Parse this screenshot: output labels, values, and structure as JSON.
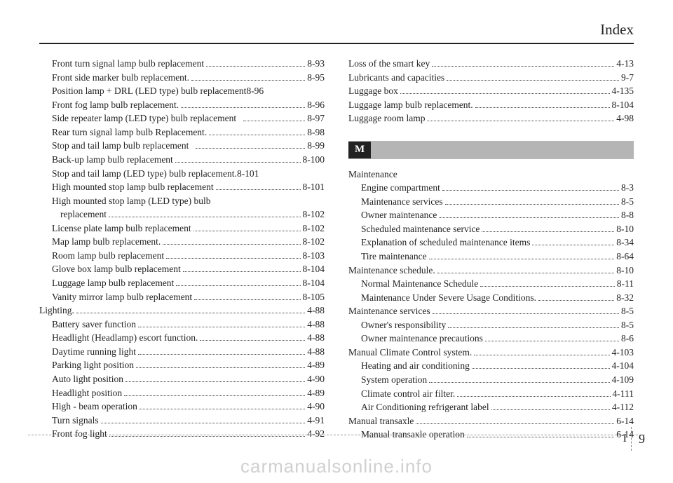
{
  "header": "Index",
  "section_letter_M": "M",
  "page_number_I": "I",
  "page_number_9": "9",
  "watermark": "carmanualsonline.info",
  "left_col": [
    {
      "label": "Front turn signal lamp bulb replacement",
      "page": "8-93",
      "indent": 1
    },
    {
      "label": "Front side marker bulb replacement.",
      "page": "8-95",
      "indent": 1
    },
    {
      "label": "Position lamp + DRL (LED type) bulb replacement",
      "page": "8-96",
      "indent": 1,
      "nodots": true
    },
    {
      "label": "Front fog lamp bulb replacement.",
      "page": "8-96",
      "indent": 1
    },
    {
      "label": "Side repeater lamp (LED type) bulb replacement",
      "page": "8-97",
      "indent": 1,
      "space": true
    },
    {
      "label": "Rear turn signal lamp bulb Replacement.",
      "page": "8-98",
      "indent": 1
    },
    {
      "label": "Stop and tail lamp bulb replacement",
      "page": "8-99",
      "indent": 1,
      "space": true
    },
    {
      "label": "Back-up lamp bulb replacement",
      "page": "8-100",
      "indent": 1
    },
    {
      "label": "Stop and tail lamp (LED type) bulb replacement.",
      "page": "8-101",
      "indent": 1,
      "nodots": true
    },
    {
      "label": "High mounted stop lamp bulb replacement",
      "page": "8-101",
      "indent": 1
    },
    {
      "label": "High mounted stop lamp (LED type) bulb",
      "page": "",
      "indent": 1,
      "nopg": true
    },
    {
      "label": "replacement",
      "page": "8-102",
      "indent": 2
    },
    {
      "label": "License plate lamp bulb replacement",
      "page": "8-102",
      "indent": 1
    },
    {
      "label": "Map lamp bulb replacement.",
      "page": "8-102",
      "indent": 1
    },
    {
      "label": "Room lamp bulb replacement",
      "page": "8-103",
      "indent": 1
    },
    {
      "label": "Glove box lamp bulb replacement",
      "page": "8-104",
      "indent": 1
    },
    {
      "label": "Luggage lamp bulb replacement",
      "page": "8-104",
      "indent": 1
    },
    {
      "label": "Vanity mirror lamp bulb replacement",
      "page": "8-105",
      "indent": 1
    },
    {
      "label": "Lighting.",
      "page": "4-88",
      "indent": 0
    },
    {
      "label": "Battery saver function",
      "page": "4-88",
      "indent": 1
    },
    {
      "label": "Headlight (Headlamp) escort function.",
      "page": "4-88",
      "indent": 1
    },
    {
      "label": "Daytime running light",
      "page": "4-88",
      "indent": 1
    },
    {
      "label": "Parking light position",
      "page": "4-89",
      "indent": 1
    },
    {
      "label": "Auto light position",
      "page": "4-90",
      "indent": 1
    },
    {
      "label": "Headlight position",
      "page": "4-89",
      "indent": 1
    },
    {
      "label": "High - beam operation",
      "page": "4-90",
      "indent": 1
    },
    {
      "label": "Turn signals",
      "page": "4-91",
      "indent": 1
    },
    {
      "label": "Front fog light",
      "page": "4-92",
      "indent": 1
    }
  ],
  "right_top": [
    {
      "label": "Loss of the smart key",
      "page": "4-13",
      "indent": 0
    },
    {
      "label": "Lubricants and capacities",
      "page": "9-7",
      "indent": 0
    },
    {
      "label": "Luggage box",
      "page": "4-135",
      "indent": 0
    },
    {
      "label": "Luggage lamp bulb replacement.",
      "page": "8-104",
      "indent": 0
    },
    {
      "label": "Luggage room lamp",
      "page": "4-98",
      "indent": 0
    }
  ],
  "right_bottom": [
    {
      "label": "Maintenance",
      "page": "",
      "indent": 0,
      "nopg": true
    },
    {
      "label": "Engine compartment",
      "page": "8-3",
      "indent": 1
    },
    {
      "label": "Maintenance services",
      "page": "8-5",
      "indent": 1
    },
    {
      "label": "Owner maintenance",
      "page": "8-8",
      "indent": 1
    },
    {
      "label": "Scheduled maintenance service",
      "page": "8-10",
      "indent": 1
    },
    {
      "label": "Explanation of scheduled maintenance items",
      "page": "8-34",
      "indent": 1
    },
    {
      "label": "Tire maintenance",
      "page": "8-64",
      "indent": 1
    },
    {
      "label": "Maintenance schedule.",
      "page": "8-10",
      "indent": 0
    },
    {
      "label": "Normal Maintenance Schedule",
      "page": "8-11",
      "indent": 1
    },
    {
      "label": "Maintenance Under Severe Usage Conditions.",
      "page": "8-32",
      "indent": 1
    },
    {
      "label": "Maintenance services",
      "page": "8-5",
      "indent": 0
    },
    {
      "label": "Owner's responsibility",
      "page": "8-5",
      "indent": 1
    },
    {
      "label": "Owner maintenance precautions",
      "page": "8-6",
      "indent": 1
    },
    {
      "label": "Manual Climate Control system.",
      "page": "4-103",
      "indent": 0
    },
    {
      "label": "Heating and air conditioning",
      "page": "4-104",
      "indent": 1
    },
    {
      "label": "System operation",
      "page": "4-109",
      "indent": 1
    },
    {
      "label": "Climate control air filter.",
      "page": "4-111",
      "indent": 1
    },
    {
      "label": "Air Conditioning refrigerant label",
      "page": "4-112",
      "indent": 1
    },
    {
      "label": "Manual transaxle",
      "page": "6-14",
      "indent": 0
    },
    {
      "label": "Manual transaxle operation",
      "page": "6-14",
      "indent": 1
    }
  ]
}
